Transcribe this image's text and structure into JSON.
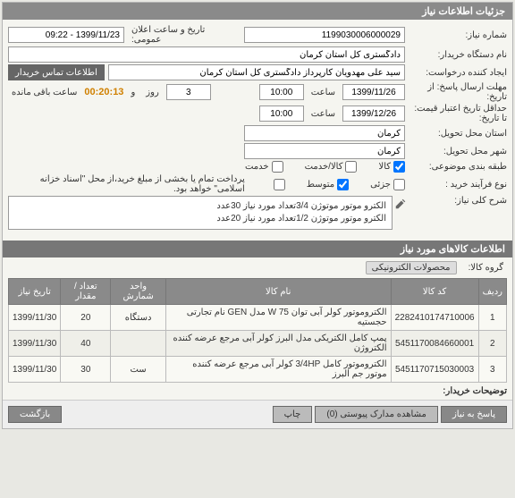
{
  "panel": {
    "title": "جزئیات اطلاعات نیاز"
  },
  "labels": {
    "reqNo": "شماره نیاز:",
    "announceDate": "تاریخ و ساعت اعلان عمومی:",
    "buyerOrg": "نام دستگاه خریدار:",
    "creator": "ایجاد کننده درخواست:",
    "contactBtn": "اطلاعات تماس خریدار",
    "replyDeadline": "مهلت ارسال پاسخ: از تاریخ:",
    "hour": "ساعت",
    "and": "و",
    "day": "روز",
    "remaining": "ساعت باقی مانده",
    "priceValidity": "حداقل تاریخ اعتبار قیمت: تا تاریخ:",
    "deliveryProvince": "استان محل تحویل:",
    "deliveryCity": "شهر محل تحویل:",
    "budgetClass": "طبقه بندی موضوعی:",
    "goods": "کالا",
    "goodsService": "کالا/خدمت",
    "service": "خدمت",
    "processType": "نوع فرآیند خرید :",
    "small": "جزئی",
    "medium": "متوسط",
    "paymentNote": "پرداخت تمام یا بخشی از مبلغ خرید،از محل \"اسناد خزانه اسلامی\" خواهد بود.",
    "summary": "شرح کلی نیاز:",
    "itemsHeader": "اطلاعات کالاهای مورد نیاز",
    "goodsGroup": "گروه کالا:",
    "buyerNotes": "توضیحات خریدار:"
  },
  "values": {
    "reqNo": "1199030006000029",
    "announceDate": "1399/11/23 - 09:22",
    "buyerOrg": "دادگستری کل استان کرمان",
    "creator": "سید علی مهدویان کارپرداز دادگستری کل استان کرمان",
    "replyDate": "1399/11/26",
    "replyHour": "10:00",
    "daysLeft": "3",
    "timer": "00:20:13",
    "priceDate": "1399/12/26",
    "priceHour": "10:00",
    "province": "کرمان",
    "city": "کرمان",
    "summaryLine1": "الکترو موتور موتوژن 3/4تعداد مورد نیاز 30عدد",
    "summaryLine2": "الکترو موتور موتوژن 1/2تعداد مورد نیاز 20عدد",
    "goodsGroupChip": "محصولات الکترونیکی"
  },
  "checks": {
    "goods": true,
    "goodsService": false,
    "service": false,
    "small": false,
    "medium": true,
    "payment": false
  },
  "table": {
    "headers": {
      "row": "ردیف",
      "code": "کد کالا",
      "name": "نام کالا",
      "unit": "واحد شمارش",
      "qty": "تعداد / مقدار",
      "need": "تاریخ نیاز"
    },
    "rows": [
      {
        "n": "1",
        "code": "2282410174710006",
        "name": "الکتروموتور کولر آبی توان W 75 مدل GEN نام تجارتی حجستیه",
        "unit": "دستگاه",
        "qty": "20",
        "need": "1399/11/30"
      },
      {
        "n": "2",
        "code": "5451170084660001",
        "name": "پمپ کامل الکتریکی مدل البرز کولر آبی مرجع عرضه کننده الکتروژن",
        "unit": "",
        "qty": "40",
        "need": "1399/11/30"
      },
      {
        "n": "3",
        "code": "5451170715030003",
        "name": "الکتروموتور کامل 3/4HP کولر آبی مرجع عرضه کننده موتور جم البرز",
        "unit": "ست",
        "qty": "30",
        "need": "1399/11/30"
      }
    ]
  },
  "footer": {
    "reply": "پاسخ به نیاز",
    "attachments": "مشاهده مدارک پیوستی (0)",
    "print": "چاپ",
    "back": "بازگشت"
  }
}
